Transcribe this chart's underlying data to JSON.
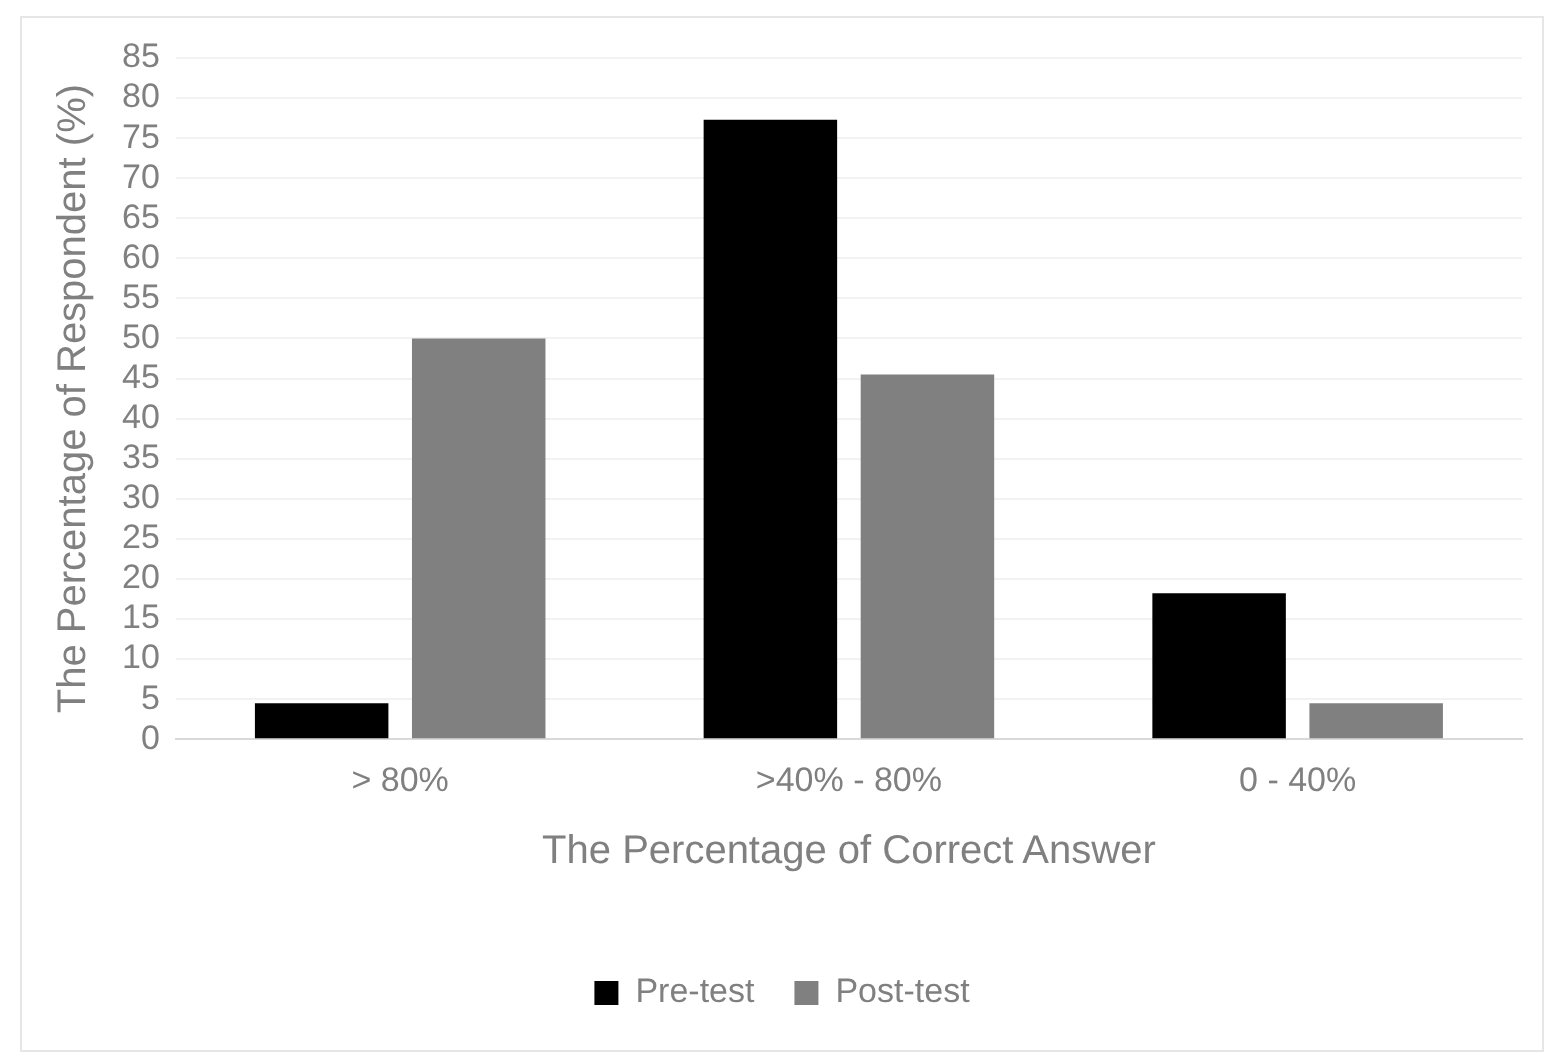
{
  "chart_data": {
    "type": "bar",
    "xlabel": "The Percentage of Correct Answer",
    "ylabel": "The Percentage of Respondent (%)",
    "categories": [
      "> 80%",
      ">40% - 80%",
      "0 - 40%"
    ],
    "series": [
      {
        "name": "Pre-test",
        "color": "#000000",
        "values": [
          4.5,
          77.3,
          18.2
        ]
      },
      {
        "name": "Post-test",
        "color": "#808080",
        "values": [
          50,
          45.5,
          4.5
        ]
      }
    ],
    "ylim": [
      0,
      85
    ],
    "yticks": [
      0,
      5,
      10,
      15,
      20,
      25,
      30,
      35,
      40,
      45,
      50,
      55,
      60,
      65,
      70,
      75,
      80,
      85
    ],
    "grid": "y",
    "legend": "bottom"
  }
}
